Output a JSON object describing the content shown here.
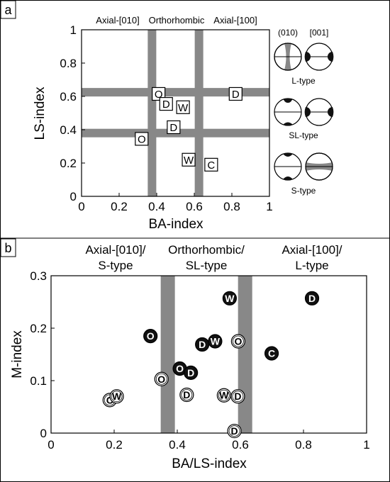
{
  "colors": {
    "band": "#888888",
    "filled": "#111111",
    "open": "#ffffff"
  },
  "panels": [
    {
      "label": "a"
    },
    {
      "label": "b"
    }
  ],
  "chart_data": [
    {
      "type": "scatter",
      "panel": "a",
      "xlabel": "BA-index",
      "ylabel": "LS-index",
      "xlim": [
        0,
        1
      ],
      "ylim": [
        0,
        1
      ],
      "xticks": [
        "0",
        "0.2",
        "0.4",
        "0.6",
        "0.8",
        "1"
      ],
      "yticks": [
        "0",
        "0.2",
        "0.4",
        "0.6",
        "0.8",
        "1"
      ],
      "top_labels": [
        "Axial-[010]",
        "Orthorhombic",
        "Axial-[100]"
      ],
      "vbands": [
        0.375,
        0.625
      ],
      "hbands": [
        0.38,
        0.625
      ],
      "points": [
        {
          "label": "O",
          "x": 0.41,
          "y": 0.615
        },
        {
          "label": "D",
          "x": 0.45,
          "y": 0.555
        },
        {
          "label": "W",
          "x": 0.54,
          "y": 0.535
        },
        {
          "label": "D",
          "x": 0.82,
          "y": 0.615
        },
        {
          "label": "D",
          "x": 0.49,
          "y": 0.415
        },
        {
          "label": "O",
          "x": 0.32,
          "y": 0.345
        },
        {
          "label": "W",
          "x": 0.57,
          "y": 0.22
        },
        {
          "label": "C",
          "x": 0.69,
          "y": 0.19
        }
      ],
      "legend": {
        "column_headers": [
          "(010)",
          "[001]"
        ],
        "types": [
          "L-type",
          "SL-type",
          "S-type"
        ]
      }
    },
    {
      "type": "scatter",
      "panel": "b",
      "xlabel": "BA/LS-index",
      "ylabel": "M-index",
      "xlim": [
        0,
        1
      ],
      "ylim": [
        0,
        0.3
      ],
      "xticks": [
        "0",
        "0.2",
        "0.4",
        "0.6",
        "0.8",
        "1"
      ],
      "yticks": [
        "0",
        "0.1",
        "0.2",
        "0.3"
      ],
      "regions": [
        {
          "line1": "Axial-[010]/",
          "line2": "S-type"
        },
        {
          "line1": "Orthorhombic/",
          "line2": "SL-type"
        },
        {
          "line1": "Axial-[100]/",
          "line2": "L-type"
        }
      ],
      "vbands": [
        0.37,
        0.615
      ],
      "series": [
        {
          "filled": true,
          "points": [
            {
              "label": "O",
              "x": 0.315,
              "y": 0.185
            },
            {
              "label": "O",
              "x": 0.408,
              "y": 0.123
            },
            {
              "label": "D",
              "x": 0.443,
              "y": 0.115
            },
            {
              "label": "D",
              "x": 0.479,
              "y": 0.169
            },
            {
              "label": "W",
              "x": 0.52,
              "y": 0.175
            },
            {
              "label": "W",
              "x": 0.566,
              "y": 0.257
            },
            {
              "label": "C",
              "x": 0.699,
              "y": 0.152
            },
            {
              "label": "D",
              "x": 0.827,
              "y": 0.257
            }
          ]
        },
        {
          "filled": false,
          "points": [
            {
              "label": "C",
              "x": 0.186,
              "y": 0.063
            },
            {
              "label": "W",
              "x": 0.208,
              "y": 0.07
            },
            {
              "label": "O",
              "x": 0.35,
              "y": 0.103
            },
            {
              "label": "D",
              "x": 0.43,
              "y": 0.073
            },
            {
              "label": "O",
              "x": 0.593,
              "y": 0.175
            },
            {
              "label": "W",
              "x": 0.548,
              "y": 0.072
            },
            {
              "label": "D",
              "x": 0.592,
              "y": 0.07
            },
            {
              "label": "D",
              "x": 0.581,
              "y": 0.004
            }
          ]
        }
      ]
    }
  ]
}
